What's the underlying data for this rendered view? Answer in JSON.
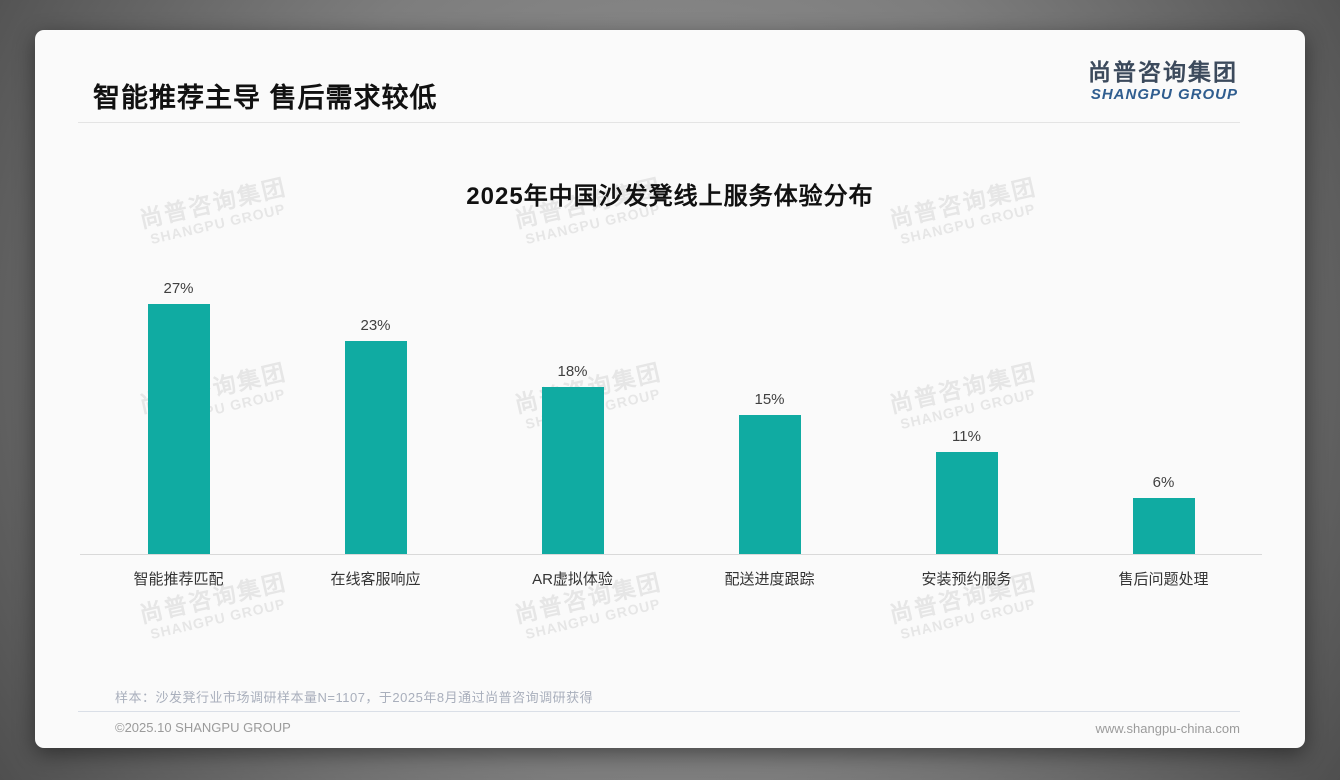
{
  "page": {
    "title": "智能推荐主导 售后需求较低",
    "logo": {
      "cn": "尚普咨询集团",
      "en": "SHANGPU GROUP"
    },
    "watermark": {
      "cn": "尚普咨询集团",
      "en": "SHANGPU GROUP"
    },
    "footnote": "样本：沙发凳行业市场调研样本量N=1107，于2025年8月通过尚普咨询调研获得",
    "footer_left": "©2025.10 SHANGPU GROUP",
    "footer_right": "www.shangpu-china.com"
  },
  "chart_data": {
    "type": "bar",
    "title": "2025年中国沙发凳线上服务体验分布",
    "categories": [
      "智能推荐匹配",
      "在线客服响应",
      "AR虚拟体验",
      "配送进度跟踪",
      "安装预约服务",
      "售后问题处理"
    ],
    "values": [
      27,
      23,
      18,
      15,
      11,
      6
    ],
    "data_labels": [
      "27%",
      "23%",
      "18%",
      "15%",
      "11%",
      "6%"
    ],
    "unit": "%",
    "bar_color": "#10aba2",
    "label_color": "#404040",
    "axis_line_color": "#d9d9d9",
    "ylim": [
      0,
      30
    ],
    "xlabel": "",
    "ylabel": "",
    "grid": false,
    "legend": "none"
  }
}
